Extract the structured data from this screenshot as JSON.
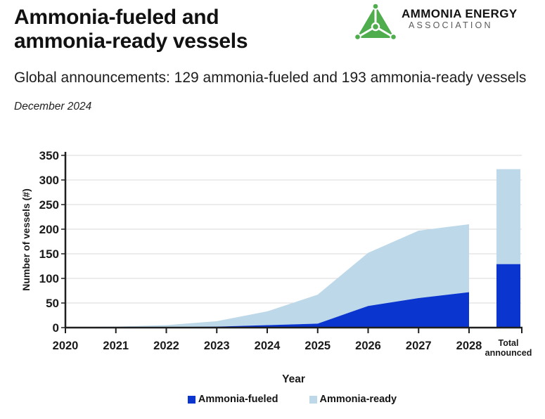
{
  "header": {
    "title_line1": "Ammonia-fueled and",
    "title_line2": "ammonia-ready vessels",
    "subtitle": "Global announcements: 129 ammonia-fueled and 193 ammonia-ready vessels",
    "date": "December 2024"
  },
  "logo": {
    "org_line1": "AMMONIA ENERGY",
    "org_line2": "ASSOCIATION",
    "green": "#4fad4e",
    "text_color": "#121212",
    "subtext_color": "#5a5a5a"
  },
  "chart_data": {
    "type": "area",
    "title": "Ammonia-fueled and ammonia-ready vessels",
    "xlabel": "Year",
    "ylabel": "Number of vessels (#)",
    "ylim": [
      0,
      350
    ],
    "y_ticks": [
      0,
      50,
      100,
      150,
      200,
      250,
      300,
      350
    ],
    "grid": true,
    "legend_position": "bottom",
    "categories": [
      "2020",
      "2021",
      "2022",
      "2023",
      "2024",
      "2025",
      "2026",
      "2027",
      "2028"
    ],
    "series": [
      {
        "name": "Ammonia-fueled",
        "color": "#0a35cf",
        "values": [
          0,
          0,
          1,
          2,
          5,
          8,
          44,
          60,
          72
        ]
      },
      {
        "name": "Ammonia-ready",
        "color": "#bdd8e8",
        "values": [
          1,
          2,
          4,
          11,
          28,
          59,
          108,
          137,
          138
        ]
      }
    ],
    "stacked_totals": [
      1,
      2,
      5,
      13,
      33,
      67,
      152,
      197,
      210
    ],
    "total_bar": {
      "label": "Total announced",
      "ammonia_fueled": 129,
      "ammonia_ready": 193,
      "total": 322
    },
    "colors": {
      "grid": "#d9d9d9",
      "axis": "#1f1f1f",
      "text": "#1a1a1a"
    }
  }
}
